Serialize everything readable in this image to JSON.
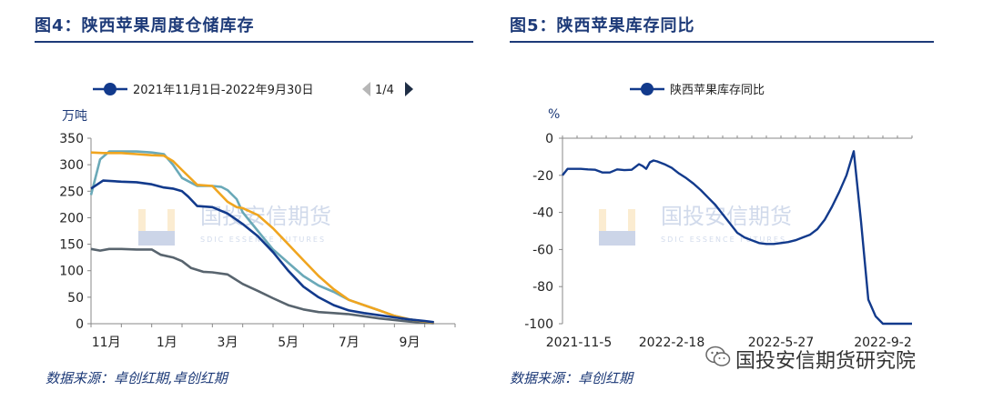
{
  "left_panel": {
    "title": "图4：陕西苹果周度仓储库存",
    "source": "数据来源：卓创红期,卓创红期"
  },
  "right_panel": {
    "title": "图5：陕西苹果库存同比",
    "source": "数据来源：卓创红期"
  },
  "watermark": {
    "name": "国投安信期货",
    "subtitle": "SDIC ESSENCE FUTURES",
    "account": "国投安信期货研究院",
    "account_icon": "wechat-icon"
  },
  "colors": {
    "navy": "#1d3a78",
    "blue_series": "#123a8c",
    "orange": "#f0a51f",
    "teal": "#6aa9b8",
    "gray": "#58646e"
  },
  "chart_data": [
    {
      "type": "line",
      "title": "图4：陕西苹果周度仓储库存",
      "ylabel": "万吨",
      "xlabel": "",
      "ylim": [
        0,
        350
      ],
      "yticks": [
        0,
        50,
        100,
        150,
        200,
        250,
        300,
        350
      ],
      "xlim": [
        0,
        12
      ],
      "xticks": [
        {
          "label": "11月",
          "x": 0.5
        },
        {
          "label": "1月",
          "x": 2.5
        },
        {
          "label": "3月",
          "x": 4.5
        },
        {
          "label": "5月",
          "x": 6.5
        },
        {
          "label": "7月",
          "x": 8.5
        },
        {
          "label": "9月",
          "x": 10.5
        }
      ],
      "legend": {
        "label": "2021年11月1日-2022年9月30日",
        "pager": "1/4",
        "position": "top"
      },
      "series": [
        {
          "name": "2021年11月1日-2022年9月30日",
          "color": "#123a8c",
          "legend": true,
          "x": [
            0,
            0.4,
            1,
            1.5,
            2,
            2.4,
            2.7,
            3,
            3.2,
            3.5,
            4,
            4.5,
            5,
            5.5,
            6,
            6.5,
            7,
            7.5,
            8,
            8.5,
            9,
            9.5,
            10,
            10.5,
            11,
            11.3
          ],
          "y": [
            255,
            270,
            268,
            267,
            263,
            257,
            255,
            250,
            240,
            222,
            220,
            208,
            188,
            165,
            135,
            100,
            70,
            50,
            35,
            25,
            20,
            16,
            12,
            8,
            5,
            3
          ]
        },
        {
          "name": "series-2",
          "color": "#f0a51f",
          "legend": false,
          "x": [
            0,
            0.4,
            1,
            1.5,
            2,
            2.4,
            2.7,
            3,
            3.5,
            4,
            4.5,
            4.8,
            5,
            5.5,
            6,
            6.5,
            7,
            7.5,
            8,
            8.5,
            9,
            9.5,
            10,
            10.5,
            11,
            11.3
          ],
          "y": [
            323,
            322,
            322,
            320,
            318,
            317,
            307,
            290,
            262,
            260,
            230,
            220,
            218,
            205,
            180,
            150,
            120,
            90,
            65,
            45,
            35,
            25,
            15,
            8,
            4,
            2
          ]
        },
        {
          "name": "series-3",
          "color": "#6aa9b8",
          "legend": false,
          "x": [
            0,
            0.3,
            0.6,
            1,
            1.5,
            2,
            2.4,
            2.7,
            3,
            3.5,
            4,
            4.3,
            4.5,
            4.8,
            5,
            5.5,
            6,
            6.5,
            7,
            7.5,
            8,
            8.5,
            9,
            9.5,
            10,
            10.5,
            11,
            11.3
          ],
          "y": [
            243,
            310,
            325,
            325,
            325,
            323,
            320,
            300,
            275,
            260,
            260,
            258,
            252,
            235,
            210,
            175,
            140,
            115,
            90,
            72,
            60,
            45,
            35,
            25,
            15,
            8,
            4,
            2
          ]
        },
        {
          "name": "series-4",
          "color": "#58646e",
          "legend": false,
          "x": [
            0,
            0.3,
            0.6,
            1,
            1.5,
            2,
            2.3,
            2.7,
            3,
            3.3,
            3.7,
            4,
            4.5,
            5,
            5.5,
            6,
            6.5,
            7,
            7.5,
            8,
            8.5,
            9,
            9.5,
            10,
            10.5,
            11,
            11.3
          ],
          "y": [
            141,
            138,
            141,
            141,
            140,
            140,
            130,
            125,
            118,
            105,
            98,
            97,
            93,
            75,
            62,
            48,
            35,
            27,
            22,
            20,
            18,
            14,
            10,
            7,
            4,
            2,
            1
          ]
        }
      ]
    },
    {
      "type": "line",
      "title": "图5：陕西苹果库存同比",
      "ylabel": "%",
      "xlabel": "",
      "ylim": [
        -100,
        0
      ],
      "yticks": [
        -100,
        -80,
        -60,
        -40,
        -20,
        0
      ],
      "x_tick_labels": [
        "2021-11-5",
        "2022-2-18",
        "2022-5-27",
        "2022-9-2"
      ],
      "legend": {
        "label": "陕西苹果库存同比",
        "position": "top"
      },
      "series": [
        {
          "name": "陕西苹果库存同比",
          "color": "#123a8c",
          "x": [
            0,
            0.7,
            1.5,
            2.5,
            3.5,
            4.5,
            5.5,
            6.5,
            7.5,
            8.5,
            9.5,
            10.5,
            11,
            11.5,
            12,
            12.5,
            13,
            14,
            15,
            16,
            17,
            18,
            19,
            20,
            21,
            22,
            23,
            24,
            25,
            26,
            27,
            28,
            29,
            30,
            31,
            32,
            33,
            34,
            35,
            36,
            37,
            38,
            39,
            40,
            41,
            42,
            43,
            44,
            45,
            46,
            47,
            48
          ],
          "y": [
            -20,
            -16.5,
            -16.5,
            -16.5,
            -16.8,
            -17,
            -18.5,
            -18.5,
            -16.8,
            -17.2,
            -17,
            -14,
            -15,
            -16.5,
            -13,
            -12,
            -12.5,
            -14,
            -16,
            -19,
            -21.5,
            -24.5,
            -28,
            -32,
            -36,
            -41,
            -46,
            -51,
            -53.5,
            -55,
            -56.5,
            -57,
            -57,
            -56.5,
            -56,
            -55,
            -53.5,
            -52,
            -49,
            -44,
            -37,
            -29,
            -20,
            -7,
            -45,
            -87,
            -96,
            -100,
            -100,
            -100,
            -100,
            -100
          ],
          "x_end": 48
        }
      ]
    }
  ]
}
